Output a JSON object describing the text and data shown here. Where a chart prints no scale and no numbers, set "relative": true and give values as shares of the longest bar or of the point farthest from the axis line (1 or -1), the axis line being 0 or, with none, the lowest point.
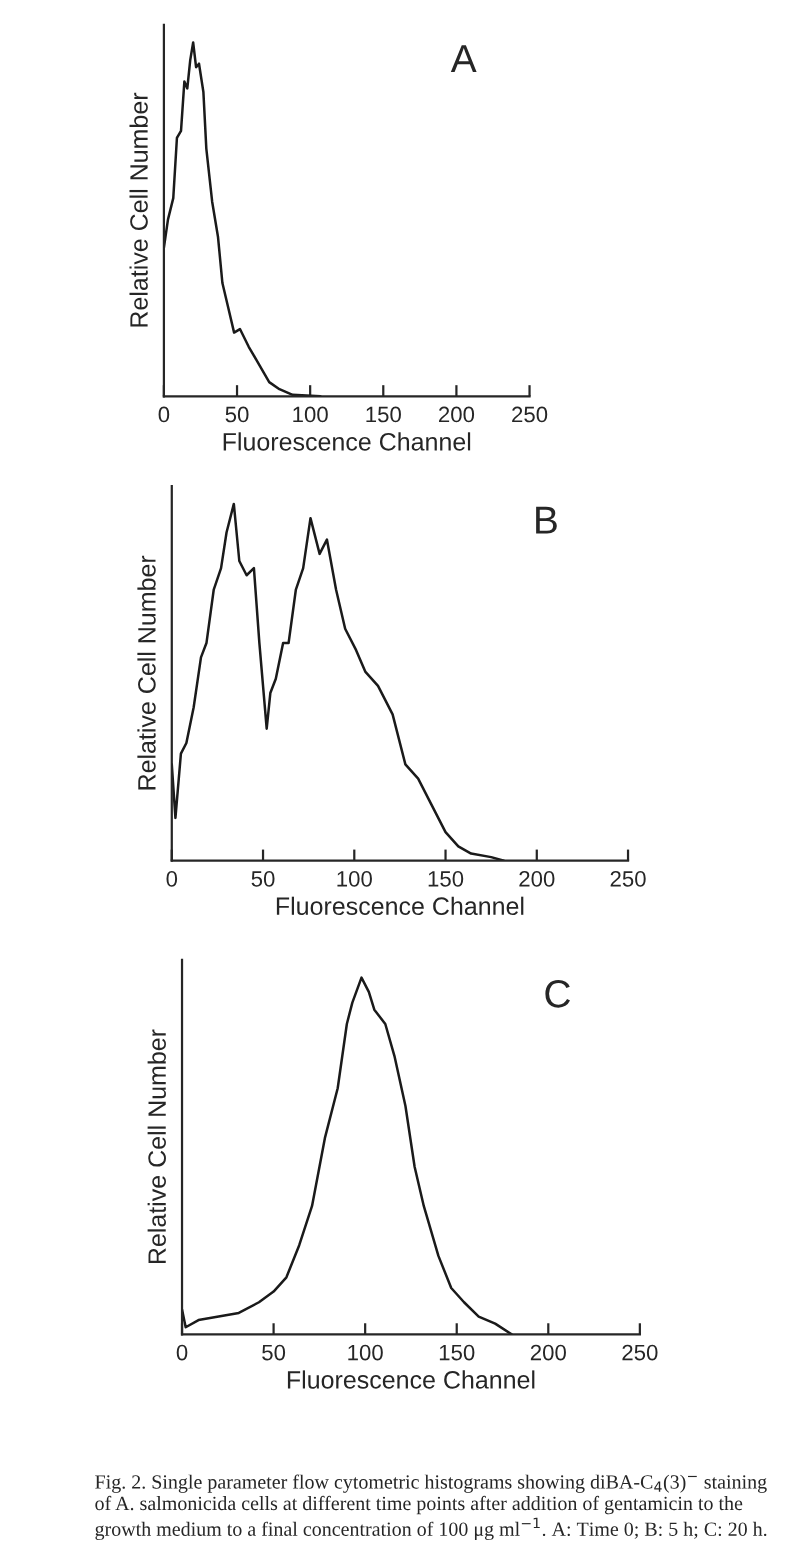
{
  "chart_data": [
    {
      "type": "line",
      "relative": true,
      "xlabel": "Fluorescence Channel",
      "ylabel": "Relative Cell Number",
      "annotations": [
        "A"
      ],
      "xlim": [
        0,
        250
      ],
      "xticks": [
        0,
        50,
        100,
        150,
        200,
        250
      ],
      "grid": false,
      "legend": false,
      "series": [
        {
          "color": "#1a1a1a",
          "x": [
            0,
            2.8,
            6.4,
            8.9,
            11.7,
            14,
            16,
            18,
            20,
            22,
            24,
            27,
            29,
            33,
            37,
            40,
            44,
            48,
            52,
            58,
            65,
            72,
            79,
            88,
            107
          ],
          "values": [
            0.42,
            0.5,
            0.56,
            0.73,
            0.75,
            0.89,
            0.87,
            0.95,
            1.0,
            0.93,
            0.94,
            0.86,
            0.7,
            0.55,
            0.45,
            0.32,
            0.25,
            0.18,
            0.19,
            0.14,
            0.09,
            0.04,
            0.02,
            0.004,
            0
          ]
        }
      ]
    },
    {
      "type": "line",
      "relative": true,
      "xlabel": "Fluorescence Channel",
      "ylabel": "Relative Cell Number",
      "annotations": [
        "B"
      ],
      "xlim": [
        0,
        250
      ],
      "xticks": [
        0,
        50,
        100,
        150,
        200,
        250
      ],
      "grid": false,
      "legend": false,
      "series": [
        {
          "color": "#1a1a1a",
          "x": [
            0,
            2,
            5,
            8,
            12,
            16,
            19,
            23,
            27,
            30,
            34,
            37,
            41,
            45,
            48,
            52,
            54,
            57,
            61,
            64,
            68,
            72,
            76,
            81,
            85,
            90,
            95,
            101,
            106,
            113,
            121,
            128,
            135,
            142,
            150,
            157,
            164,
            175,
            182
          ],
          "values": [
            0.27,
            0.12,
            0.3,
            0.33,
            0.43,
            0.57,
            0.61,
            0.76,
            0.82,
            0.92,
            1.0,
            0.84,
            0.8,
            0.82,
            0.61,
            0.37,
            0.47,
            0.51,
            0.61,
            0.61,
            0.76,
            0.82,
            0.96,
            0.86,
            0.9,
            0.76,
            0.65,
            0.59,
            0.53,
            0.49,
            0.41,
            0.27,
            0.23,
            0.16,
            0.08,
            0.04,
            0.02,
            0.01,
            0
          ]
        }
      ]
    },
    {
      "type": "line",
      "relative": true,
      "xlabel": "Fluorescence Channel",
      "ylabel": "Relative Cell Number",
      "annotations": [
        "C",
        "Fig. 2. Single parameter flow cytometric histograms showing diBA-C$_{4}$(3)$^{−}$ staining of A. salmonicida cells at different time points after addition of gentamicin to the growth medium to a final concentration of 100 μg ml$^{−1}$. A: Time 0; B: 5 h; C: 20 h."
      ],
      "xlim": [
        0,
        250
      ],
      "xticks": [
        0,
        50,
        100,
        150,
        200,
        250
      ],
      "grid": false,
      "legend": false,
      "series": [
        {
          "color": "#1a1a1a",
          "x": [
            0,
            2,
            9,
            20,
            31,
            42,
            50,
            57,
            64,
            71,
            78,
            85,
            90,
            93,
            98,
            102,
            105,
            111,
            116,
            122,
            127,
            132,
            140,
            147,
            154,
            162,
            171,
            180
          ],
          "values": [
            0.07,
            0.02,
            0.04,
            0.05,
            0.06,
            0.09,
            0.12,
            0.16,
            0.25,
            0.36,
            0.55,
            0.69,
            0.87,
            0.93,
            1.0,
            0.96,
            0.91,
            0.87,
            0.78,
            0.64,
            0.47,
            0.36,
            0.22,
            0.13,
            0.09,
            0.05,
            0.03,
            0.0
          ]
        }
      ]
    }
  ]
}
